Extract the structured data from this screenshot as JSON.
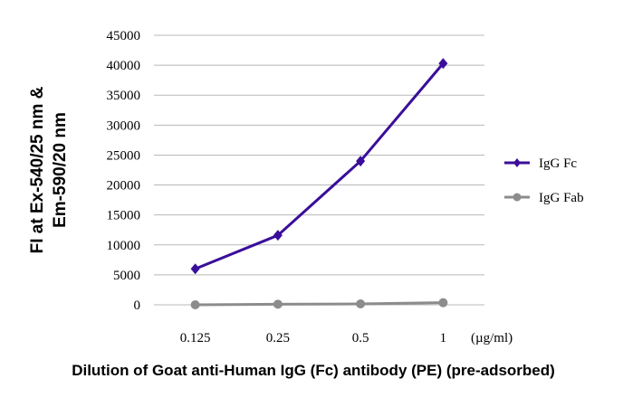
{
  "chart_data": {
    "type": "line",
    "categories": [
      "0.125",
      "0.25",
      "0.5",
      "1"
    ],
    "x_unit": "(µg/ml)",
    "xlabel": "Dilution of Goat anti-Human IgG (Fc) antibody (PE) (pre-adsorbed)",
    "ylabel": [
      "FI at Ex-540/25 nm &",
      "Em-590/20 nm"
    ],
    "ylim": [
      0,
      45000
    ],
    "yticks": [
      0,
      5000,
      10000,
      15000,
      20000,
      25000,
      30000,
      35000,
      40000,
      45000
    ],
    "grid": true,
    "legend_position": "right",
    "series": [
      {
        "name": "IgG Fc",
        "values": [
          6000,
          11600,
          24000,
          40300
        ],
        "color": "#3a0e9a",
        "marker": "diamond"
      },
      {
        "name": "IgG Fab",
        "values": [
          0,
          100,
          150,
          350
        ],
        "color": "#8c8c8c",
        "marker": "circle"
      }
    ]
  }
}
